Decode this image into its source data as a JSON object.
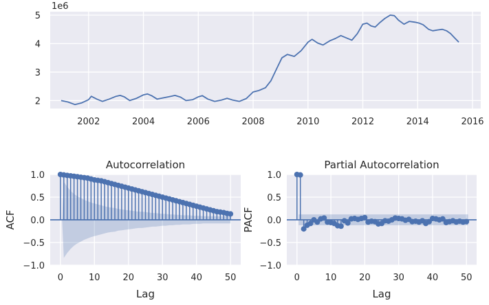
{
  "chart_data": [
    {
      "type": "line",
      "offset_label": "1e6",
      "xlim": [
        2000.6,
        2016.3
      ],
      "ylim": [
        1.72,
        5.12
      ],
      "x_ticks": [
        "2002",
        "2004",
        "2006",
        "2008",
        "2010",
        "2012",
        "2014",
        "2016"
      ],
      "y_ticks": [
        "2",
        "3",
        "4",
        "5"
      ],
      "grid": true,
      "color": "#4c72b0",
      "x": [
        2001.0,
        2001.25,
        2001.5,
        2001.75,
        2002.0,
        2002.1,
        2002.3,
        2002.5,
        2002.75,
        2003.0,
        2003.15,
        2003.3,
        2003.5,
        2003.75,
        2004.0,
        2004.15,
        2004.3,
        2004.5,
        2004.75,
        2005.0,
        2005.15,
        2005.35,
        2005.55,
        2005.8,
        2006.0,
        2006.15,
        2006.35,
        2006.6,
        2006.85,
        2007.05,
        2007.25,
        2007.5,
        2007.75,
        2008.0,
        2008.2,
        2008.45,
        2008.65,
        2008.85,
        2009.05,
        2009.25,
        2009.5,
        2009.75,
        2010.0,
        2010.15,
        2010.35,
        2010.55,
        2010.8,
        2011.0,
        2011.2,
        2011.4,
        2011.6,
        2011.8,
        2012.0,
        2012.15,
        2012.3,
        2012.45,
        2012.6,
        2012.8,
        2013.0,
        2013.15,
        2013.3,
        2013.5,
        2013.7,
        2013.9,
        2014.05,
        2014.2,
        2014.4,
        2014.55,
        2014.75,
        2014.9,
        2015.05,
        2015.2,
        2015.35,
        2015.5
      ],
      "y": [
        2.0,
        1.95,
        1.86,
        1.92,
        2.03,
        2.15,
        2.05,
        1.97,
        2.05,
        2.15,
        2.18,
        2.13,
        2.0,
        2.08,
        2.2,
        2.23,
        2.17,
        2.05,
        2.1,
        2.15,
        2.18,
        2.12,
        2.0,
        2.03,
        2.13,
        2.17,
        2.05,
        1.97,
        2.02,
        2.08,
        2.02,
        1.97,
        2.07,
        2.3,
        2.35,
        2.45,
        2.7,
        3.1,
        3.5,
        3.62,
        3.55,
        3.75,
        4.05,
        4.15,
        4.02,
        3.95,
        4.1,
        4.18,
        4.28,
        4.2,
        4.12,
        4.35,
        4.68,
        4.72,
        4.62,
        4.58,
        4.72,
        4.88,
        5.0,
        4.98,
        4.82,
        4.68,
        4.78,
        4.75,
        4.72,
        4.66,
        4.5,
        4.45,
        4.48,
        4.5,
        4.45,
        4.35,
        4.2,
        4.05
      ]
    },
    {
      "type": "stem",
      "title": "Autocorrelation",
      "xlabel": "Lag",
      "ylabel": "ACF",
      "xlim": [
        -3,
        53
      ],
      "ylim": [
        -1.0,
        1.0
      ],
      "x_ticks": [
        "0",
        "10",
        "20",
        "30",
        "40",
        "50"
      ],
      "y_ticks": [
        "1.0",
        "0.5",
        "0.0",
        "−0.5",
        "−1.0"
      ],
      "confidence_band_upper": [
        0.0,
        0.84,
        0.73,
        0.64,
        0.57,
        0.52,
        0.48,
        0.44,
        0.41,
        0.38,
        0.36,
        0.34,
        0.32,
        0.3,
        0.28,
        0.27,
        0.26,
        0.24,
        0.23,
        0.22,
        0.21,
        0.2,
        0.19,
        0.18,
        0.18,
        0.17,
        0.16,
        0.15,
        0.15,
        0.14,
        0.13,
        0.13,
        0.12,
        0.12,
        0.11,
        0.11,
        0.1,
        0.1,
        0.1,
        0.09,
        0.09,
        0.09,
        0.08,
        0.08,
        0.08,
        0.08,
        0.08,
        0.08,
        0.08,
        0.08,
        0.08
      ],
      "lags": [
        0,
        1,
        2,
        3,
        4,
        5,
        6,
        7,
        8,
        9,
        10,
        11,
        12,
        13,
        14,
        15,
        16,
        17,
        18,
        19,
        20,
        21,
        22,
        23,
        24,
        25,
        26,
        27,
        28,
        29,
        30,
        31,
        32,
        33,
        34,
        35,
        36,
        37,
        38,
        39,
        40,
        41,
        42,
        43,
        44,
        45,
        46,
        47,
        48,
        49,
        50
      ],
      "values": [
        1.0,
        0.99,
        0.98,
        0.97,
        0.96,
        0.95,
        0.94,
        0.93,
        0.92,
        0.9,
        0.88,
        0.87,
        0.86,
        0.84,
        0.82,
        0.8,
        0.78,
        0.76,
        0.74,
        0.72,
        0.7,
        0.68,
        0.66,
        0.64,
        0.62,
        0.6,
        0.58,
        0.56,
        0.54,
        0.52,
        0.5,
        0.48,
        0.46,
        0.44,
        0.42,
        0.4,
        0.38,
        0.36,
        0.34,
        0.32,
        0.3,
        0.28,
        0.26,
        0.24,
        0.22,
        0.2,
        0.18,
        0.17,
        0.16,
        0.14,
        0.13
      ]
    },
    {
      "type": "stem",
      "title": "Partial Autocorrelation",
      "xlabel": "Lag",
      "ylabel": "PACF",
      "xlim": [
        -3,
        53
      ],
      "ylim": [
        -1.0,
        1.0
      ],
      "x_ticks": [
        "0",
        "10",
        "20",
        "30",
        "40",
        "50"
      ],
      "y_ticks": [
        "1.0",
        "0.5",
        "0.0",
        "−0.5",
        "−1.0"
      ],
      "confidence_band_upper": 0.12,
      "lags": [
        0,
        1,
        2,
        3,
        4,
        5,
        6,
        7,
        8,
        9,
        10,
        11,
        12,
        13,
        14,
        15,
        16,
        17,
        18,
        19,
        20,
        21,
        22,
        23,
        24,
        25,
        26,
        27,
        28,
        29,
        30,
        31,
        32,
        33,
        34,
        35,
        36,
        37,
        38,
        39,
        40,
        41,
        42,
        43,
        44,
        45,
        46,
        47,
        48,
        49,
        50
      ],
      "values": [
        1.0,
        0.99,
        -0.2,
        -0.12,
        -0.08,
        0.0,
        -0.05,
        0.02,
        0.04,
        -0.05,
        -0.06,
        -0.08,
        -0.13,
        -0.14,
        -0.02,
        -0.07,
        0.02,
        0.03,
        0.01,
        0.03,
        0.05,
        -0.05,
        -0.03,
        -0.04,
        -0.09,
        -0.08,
        -0.02,
        -0.03,
        0.0,
        0.04,
        0.03,
        0.02,
        -0.01,
        0.01,
        -0.04,
        -0.03,
        -0.05,
        -0.02,
        -0.08,
        -0.04,
        0.03,
        0.02,
        0.0,
        0.02,
        -0.06,
        -0.04,
        -0.02,
        -0.05,
        -0.03,
        -0.05,
        -0.04
      ]
    }
  ]
}
